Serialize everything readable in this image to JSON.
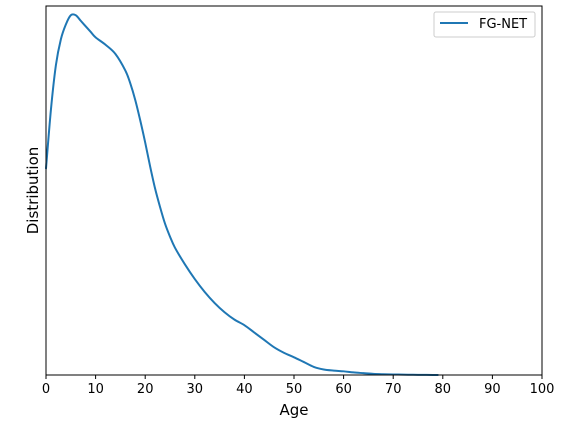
{
  "chart_data": {
    "type": "line",
    "title": "",
    "xlabel": "Age",
    "ylabel": "Distribution",
    "xlim": [
      0,
      100
    ],
    "ylim": [
      0,
      1
    ],
    "y_tick_labels_shown": false,
    "x_ticks": [
      0,
      10,
      20,
      30,
      40,
      50,
      60,
      70,
      80,
      90,
      100
    ],
    "grid": false,
    "legend": {
      "position": "top-right"
    },
    "series": [
      {
        "name": "FG-NET",
        "color": "#1f77b4",
        "x": [
          0,
          1,
          2,
          3,
          4,
          5,
          6,
          7,
          8,
          9,
          10,
          12,
          14,
          16,
          17,
          18,
          19,
          20,
          21,
          22,
          23,
          24,
          25,
          26,
          28,
          30,
          32,
          34,
          36,
          38,
          40,
          42,
          44,
          46,
          48,
          50,
          52,
          54,
          56,
          58,
          60,
          62,
          64,
          66,
          68,
          70,
          72,
          74,
          76,
          78,
          79
        ],
        "y": [
          0.56,
          0.72,
          0.84,
          0.91,
          0.95,
          0.975,
          0.975,
          0.96,
          0.945,
          0.93,
          0.915,
          0.895,
          0.87,
          0.825,
          0.79,
          0.745,
          0.69,
          0.63,
          0.565,
          0.505,
          0.455,
          0.41,
          0.375,
          0.345,
          0.3,
          0.26,
          0.225,
          0.195,
          0.17,
          0.15,
          0.135,
          0.115,
          0.095,
          0.075,
          0.06,
          0.048,
          0.035,
          0.022,
          0.015,
          0.012,
          0.01,
          0.007,
          0.005,
          0.003,
          0.002,
          0.0015,
          0.001,
          0.0006,
          0.0003,
          0.0001,
          0.0
        ]
      }
    ]
  }
}
